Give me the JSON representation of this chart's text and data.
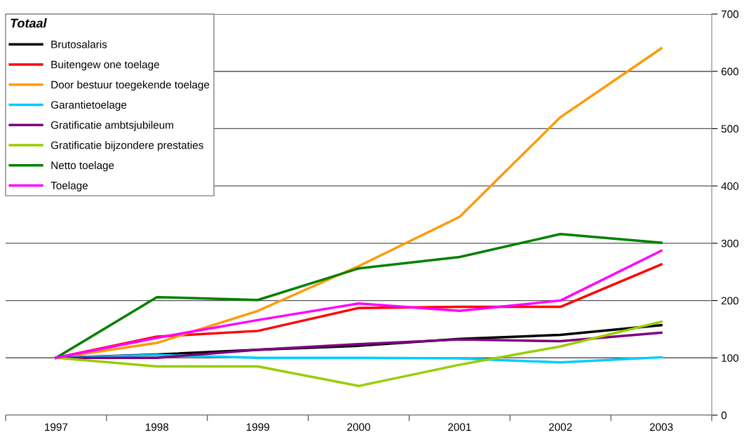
{
  "chart_data": {
    "type": "line",
    "legend_title": "Totaal",
    "categories": [
      "1997",
      "1998",
      "1999",
      "2000",
      "2001",
      "2002",
      "2003"
    ],
    "series": [
      {
        "name": "Brutosalaris",
        "color": "#000000",
        "values": [
          100,
          106,
          114,
          121,
          133,
          140,
          157
        ]
      },
      {
        "name": "Buitengew one toelage",
        "color": "#ff0000",
        "values": [
          100,
          137,
          147,
          187,
          189,
          189,
          263
        ]
      },
      {
        "name": "Door bestuur toegekende toelage",
        "color": "#ff9900",
        "values": [
          100,
          126,
          182,
          260,
          346,
          520,
          640
        ]
      },
      {
        "name": "Garantietoelage",
        "color": "#00ccff",
        "values": [
          100,
          105,
          100,
          100,
          99,
          92,
          101
        ]
      },
      {
        "name": "Gratificatie ambtsjubileum",
        "color": "#800080",
        "values": [
          100,
          100,
          114,
          124,
          132,
          129,
          144
        ]
      },
      {
        "name": "Gratificatie bijzondere prestaties",
        "color": "#99cc00",
        "values": [
          100,
          85,
          85,
          51,
          88,
          120,
          163
        ]
      },
      {
        "name": "Netto toelage",
        "color": "#008000",
        "values": [
          100,
          206,
          201,
          256,
          276,
          316,
          301
        ]
      },
      {
        "name": "Toelage",
        "color": "#ff00ff",
        "values": [
          100,
          135,
          166,
          195,
          182,
          200,
          287
        ]
      }
    ],
    "ylim": [
      0,
      700
    ],
    "yticks": [
      0,
      100,
      200,
      300,
      400,
      500,
      600,
      700
    ],
    "grid": "y",
    "legend": "top left",
    "marker": "none",
    "line_style": "solid"
  }
}
